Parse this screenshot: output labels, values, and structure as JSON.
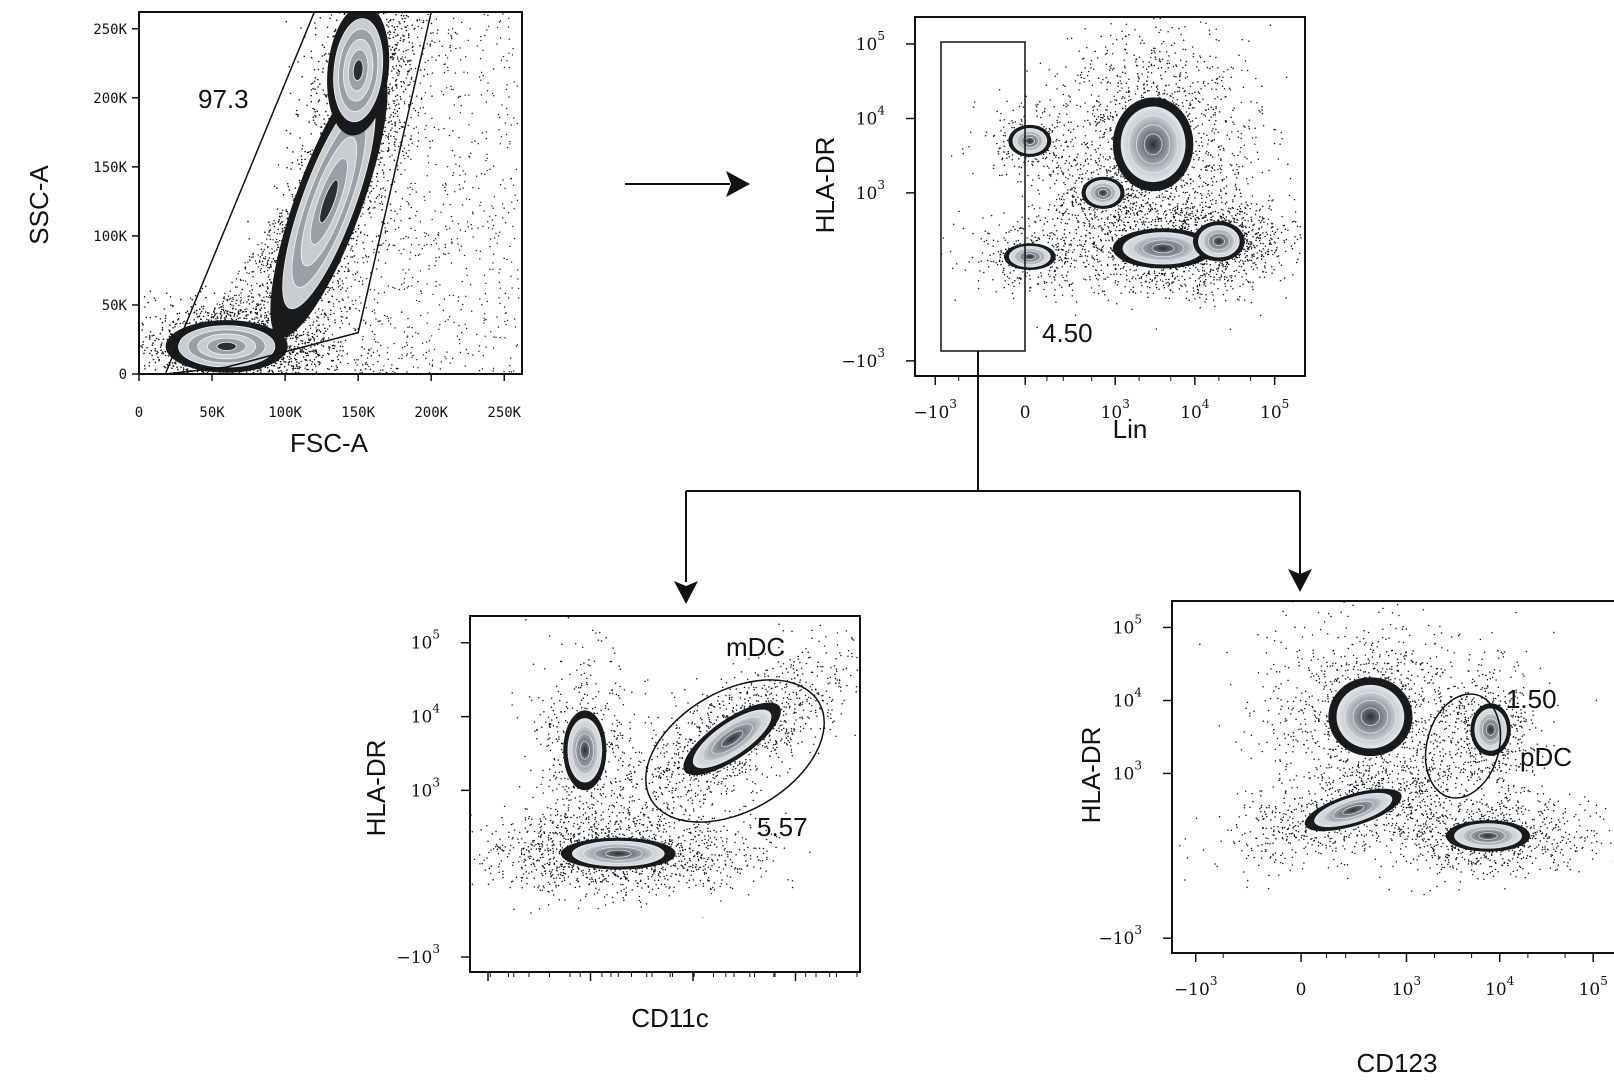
{
  "chart_data": [
    {
      "id": "plot1",
      "type": "scatter",
      "plot_style": "pseudocolor contour (flow cytometry)",
      "xlabel": "FSC-A",
      "ylabel": "SSC-A",
      "x_scale": "linear",
      "y_scale": "linear",
      "xlim": [
        0,
        262144
      ],
      "ylim": [
        0,
        262144
      ],
      "x_ticks": [
        {
          "v": 0,
          "label": "0"
        },
        {
          "v": 50000,
          "label": "50K"
        },
        {
          "v": 100000,
          "label": "100K"
        },
        {
          "v": 150000,
          "label": "150K"
        },
        {
          "v": 200000,
          "label": "200K"
        },
        {
          "v": 250000,
          "label": "250K"
        }
      ],
      "y_ticks": [
        {
          "v": 0,
          "label": "0"
        },
        {
          "v": 50000,
          "label": "50K"
        },
        {
          "v": 100000,
          "label": "100K"
        },
        {
          "v": 150000,
          "label": "150K"
        },
        {
          "v": 200000,
          "label": "200K"
        },
        {
          "v": 250000,
          "label": "250K"
        }
      ],
      "gate": {
        "shape": "polygon",
        "value": "97.3",
        "vertices": [
          [
            18000,
            0
          ],
          [
            120000,
            262000
          ],
          [
            200000,
            262000
          ],
          [
            150000,
            30000
          ],
          [
            60000,
            5000
          ]
        ]
      },
      "populations": [
        {
          "cx": 60000,
          "cy": 20000,
          "sx": 22000,
          "sy": 10000,
          "rot": 0,
          "n": 1400
        },
        {
          "cx": 130000,
          "cy": 125000,
          "sx": 12000,
          "sy": 55000,
          "rot": -0.35,
          "n": 1800
        },
        {
          "cx": 150000,
          "cy": 220000,
          "sx": 11000,
          "sy": 25000,
          "rot": -0.1,
          "n": 600
        }
      ]
    },
    {
      "id": "plot2",
      "type": "scatter",
      "plot_style": "pseudocolor contour (flow cytometry)",
      "xlabel": "Lin",
      "ylabel": "HLA-DR",
      "x_scale": "biexponential",
      "y_scale": "biexponential",
      "x_ticks": [
        {
          "v": -1000,
          "base": "−10",
          "exp": "3"
        },
        {
          "v": 0,
          "base": "0",
          "exp": ""
        },
        {
          "v": 1000,
          "base": "10",
          "exp": "3"
        },
        {
          "v": 10000,
          "base": "10",
          "exp": "4"
        },
        {
          "v": 100000,
          "base": "10",
          "exp": "5"
        }
      ],
      "y_ticks": [
        {
          "v": -1000,
          "base": "−10",
          "exp": "3"
        },
        {
          "v": 1000,
          "base": "10",
          "exp": "3"
        },
        {
          "v": 10000,
          "base": "10",
          "exp": "4"
        },
        {
          "v": 100000,
          "base": "10",
          "exp": "5"
        }
      ],
      "gate": {
        "shape": "rectangle",
        "value": "4.50",
        "x_range": [
          -1400,
          220
        ],
        "y_range": [
          -900,
          130000
        ]
      },
      "populations": [
        {
          "cx": 20,
          "cy": 5000,
          "sx": 0.15,
          "sy": 0.12,
          "rot": 0,
          "n": 200
        },
        {
          "cx": 3000,
          "cy": 4500,
          "sx": 0.28,
          "sy": 0.35,
          "rot": 0,
          "n": 1500
        },
        {
          "cx": 4000,
          "cy": 150,
          "sx": 0.35,
          "sy": 0.15,
          "rot": 0,
          "n": 900
        },
        {
          "cx": 20000,
          "cy": 200,
          "sx": 0.18,
          "sy": 0.15,
          "rot": 0,
          "n": 600
        },
        {
          "cx": 700,
          "cy": 1000,
          "sx": 0.15,
          "sy": 0.12,
          "rot": 0,
          "n": 300
        },
        {
          "cx": 20,
          "cy": 100,
          "sx": 0.18,
          "sy": 0.1,
          "rot": 0,
          "n": 300
        }
      ]
    },
    {
      "id": "plot3",
      "type": "scatter",
      "plot_style": "pseudocolor contour (flow cytometry)",
      "xlabel": "CD11c",
      "ylabel": "HLA-DR",
      "x_scale": "biexponential",
      "y_scale": "biexponential",
      "x_ticks": [],
      "y_ticks": [
        {
          "v": -1000,
          "base": "−10",
          "exp": "3"
        },
        {
          "v": 1000,
          "base": "10",
          "exp": "3"
        },
        {
          "v": 10000,
          "base": "10",
          "exp": "4"
        },
        {
          "v": 100000,
          "base": "10",
          "exp": "5"
        }
      ],
      "gate": {
        "shape": "ellipse",
        "name": "mDC",
        "value": "5.57"
      },
      "populations": [
        {
          "cx": 20,
          "cy": 3500,
          "sx": 0.15,
          "sy": 0.3,
          "rot": 0,
          "n": 500
        },
        {
          "cx": 200,
          "cy": 100,
          "sx": 0.4,
          "sy": 0.12,
          "rot": 0,
          "n": 1400
        },
        {
          "cx": 6000,
          "cy": 5000,
          "sx": 0.4,
          "sy": 0.15,
          "rot": -0.6,
          "n": 1200
        }
      ]
    },
    {
      "id": "plot4",
      "type": "scatter",
      "plot_style": "pseudocolor contour (flow cytometry)",
      "xlabel": "CD123",
      "ylabel": "HLA-DR",
      "x_scale": "biexponential",
      "y_scale": "biexponential",
      "x_ticks": [
        {
          "v": -1000,
          "base": "−10",
          "exp": "3"
        },
        {
          "v": 0,
          "base": "0",
          "exp": ""
        },
        {
          "v": 1000,
          "base": "10",
          "exp": "3"
        },
        {
          "v": 10000,
          "base": "10",
          "exp": "4"
        },
        {
          "v": 100000,
          "base": "10",
          "exp": "5"
        }
      ],
      "y_ticks": [
        {
          "v": -1000,
          "base": "−10",
          "exp": "3"
        },
        {
          "v": 1000,
          "base": "10",
          "exp": "3"
        },
        {
          "v": 10000,
          "base": "10",
          "exp": "4"
        },
        {
          "v": 100000,
          "base": "10",
          "exp": "5"
        }
      ],
      "gate": {
        "shape": "ellipse",
        "name": "pDC",
        "value": "1.50"
      },
      "populations": [
        {
          "cx": 400,
          "cy": 6000,
          "sx": 0.25,
          "sy": 0.3,
          "rot": 0,
          "n": 1200
        },
        {
          "cx": 250,
          "cy": 300,
          "sx": 0.3,
          "sy": 0.12,
          "rot": -0.3,
          "n": 800
        },
        {
          "cx": 8000,
          "cy": 4000,
          "sx": 0.12,
          "sy": 0.2,
          "rot": 0,
          "n": 500
        },
        {
          "cx": 7500,
          "cy": 100,
          "sx": 0.25,
          "sy": 0.12,
          "rot": 0,
          "n": 900
        }
      ]
    }
  ],
  "colors": {
    "ink": "#111111",
    "dense": "#1a1a1a",
    "light": "#c8cdd2",
    "mid": "#7d848a"
  }
}
